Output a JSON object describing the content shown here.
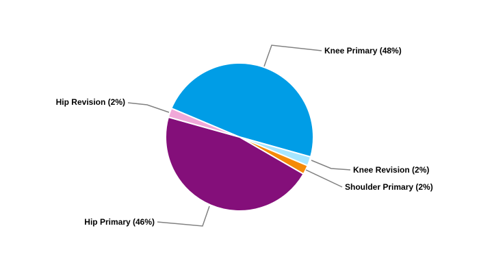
{
  "chart_data": {
    "type": "pie",
    "title": "",
    "slices": [
      {
        "label": "Knee Primary (48%)",
        "value": 48,
        "color": "#009de6"
      },
      {
        "label": "Knee Revision (2%)",
        "value": 2,
        "color": "#a6e6ff"
      },
      {
        "label": "Shoulder Primary (2%)",
        "value": 2,
        "color": "#f58a07"
      },
      {
        "label": "Hip Primary (46%)",
        "value": 46,
        "color": "#840f7a"
      },
      {
        "label": "Hip Revision (2%)",
        "value": 2,
        "color": "#f0a8d8"
      }
    ],
    "legend": "none",
    "leader_line_color": "#808080"
  }
}
